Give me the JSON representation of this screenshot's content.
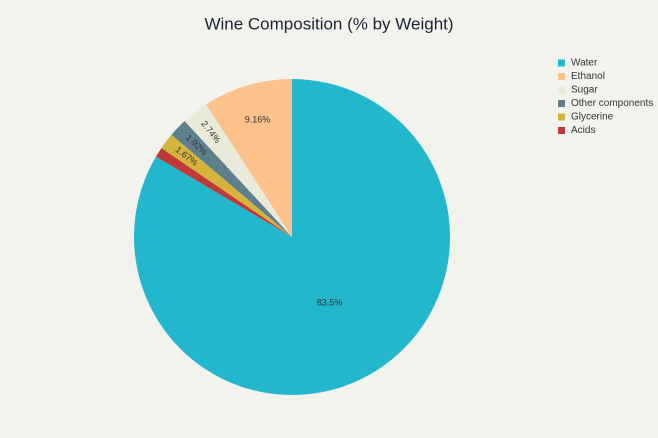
{
  "chart_data": {
    "type": "pie",
    "title": "Wine Composition (% by Weight)",
    "categories": [
      "Water",
      "Ethanol",
      "Sugar",
      "Other components",
      "Glycerine",
      "Acids"
    ],
    "values": [
      83.5,
      9.16,
      2.74,
      1.92,
      1.67,
      1.01
    ],
    "value_labels": [
      "83.5%",
      "9.16%",
      "2.74%",
      "1.92%",
      "1.67%",
      null
    ],
    "colors": [
      "#22b7cd",
      "#fdc18b",
      "#eaeadb",
      "#5e7f8c",
      "#d4b43c",
      "#bf3a36"
    ],
    "legend": "top-right"
  }
}
